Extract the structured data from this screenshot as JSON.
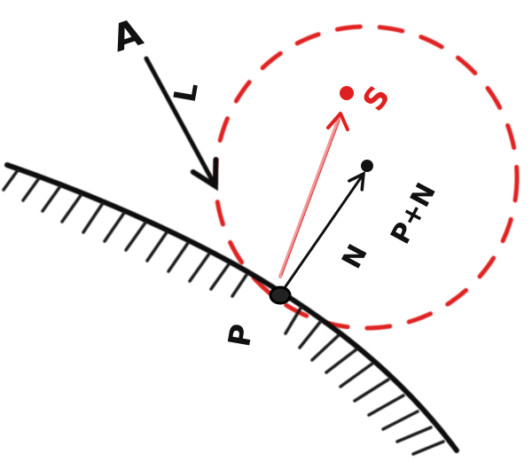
{
  "labels": {
    "point_A": "A",
    "vec_L": "L",
    "vec_N": "N",
    "point_P": "P",
    "point_P_plus_N": "P+N",
    "point_S": "S"
  },
  "colors": {
    "ink": "#111111",
    "hatch": "#1a1a1a",
    "accent_red": "#e02020",
    "pale_red": "#f29a9a"
  }
}
